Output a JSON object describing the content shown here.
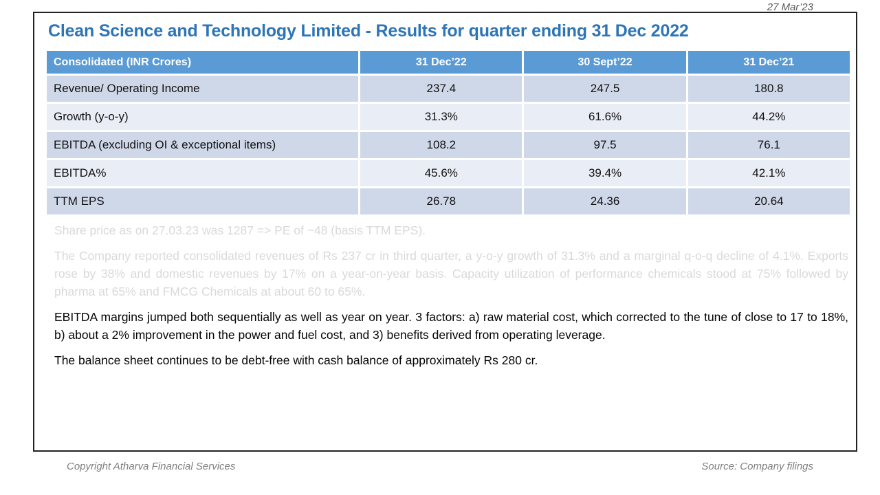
{
  "page": {
    "date": "27 Mar’23",
    "title": "Clean Science and Technology Limited - Results for quarter ending 31 Dec 2022"
  },
  "table": {
    "header": [
      "Consolidated (INR Crores)",
      "31 Dec’22",
      "30 Sept’22",
      "31 Dec’21"
    ],
    "rows": [
      [
        "Revenue/ Operating Income",
        "237.4",
        "247.5",
        "180.8"
      ],
      [
        "Growth (y-o-y)",
        "31.3%",
        "61.6%",
        "44.2%"
      ],
      [
        "EBITDA (excluding OI & exceptional items)",
        "108.2",
        "97.5",
        "76.1"
      ],
      [
        "EBITDA%",
        "45.6%",
        "39.4%",
        "42.1%"
      ],
      [
        "TTM EPS",
        "26.78",
        "24.36",
        "20.64"
      ]
    ]
  },
  "notes": {
    "muted": [
      "Share price as on 27.03.23 was 1287 => PE of ~48 (basis TTM EPS).",
      "The Company reported consolidated revenues of Rs 237 cr in third quarter, a y-o-y growth of 31.3% and a marginal q-o-q decline of 4.1%. Exports rose by 38% and domestic revenues by 17% on a year-on-year basis. Capacity utilization of performance chemicals stood at 75% followed by pharma at 65% and FMCG Chemicals at about 60 to 65%."
    ],
    "dark": [
      "EBITDA margins jumped both sequentially as well as year on year. 3 factors: a) raw material cost, which corrected to the tune of close to 17 to 18%, b) about a 2% improvement in the power and fuel cost, and 3) benefits derived from operating leverage.",
      "The balance sheet continues to be debt-free with cash balance of approximately Rs 280 cr."
    ]
  },
  "footer": {
    "copyright": "Copyright Atharva Financial Services",
    "source": "Source: Company filings"
  },
  "colors": {
    "title_blue": "#2e75b6",
    "table_header_bg": "#5b9bd5",
    "band_dark": "#cfd8e9",
    "band_light": "#e9edf5",
    "muted_text": "#d9d9d9",
    "footer_text": "#7f7f7f"
  }
}
